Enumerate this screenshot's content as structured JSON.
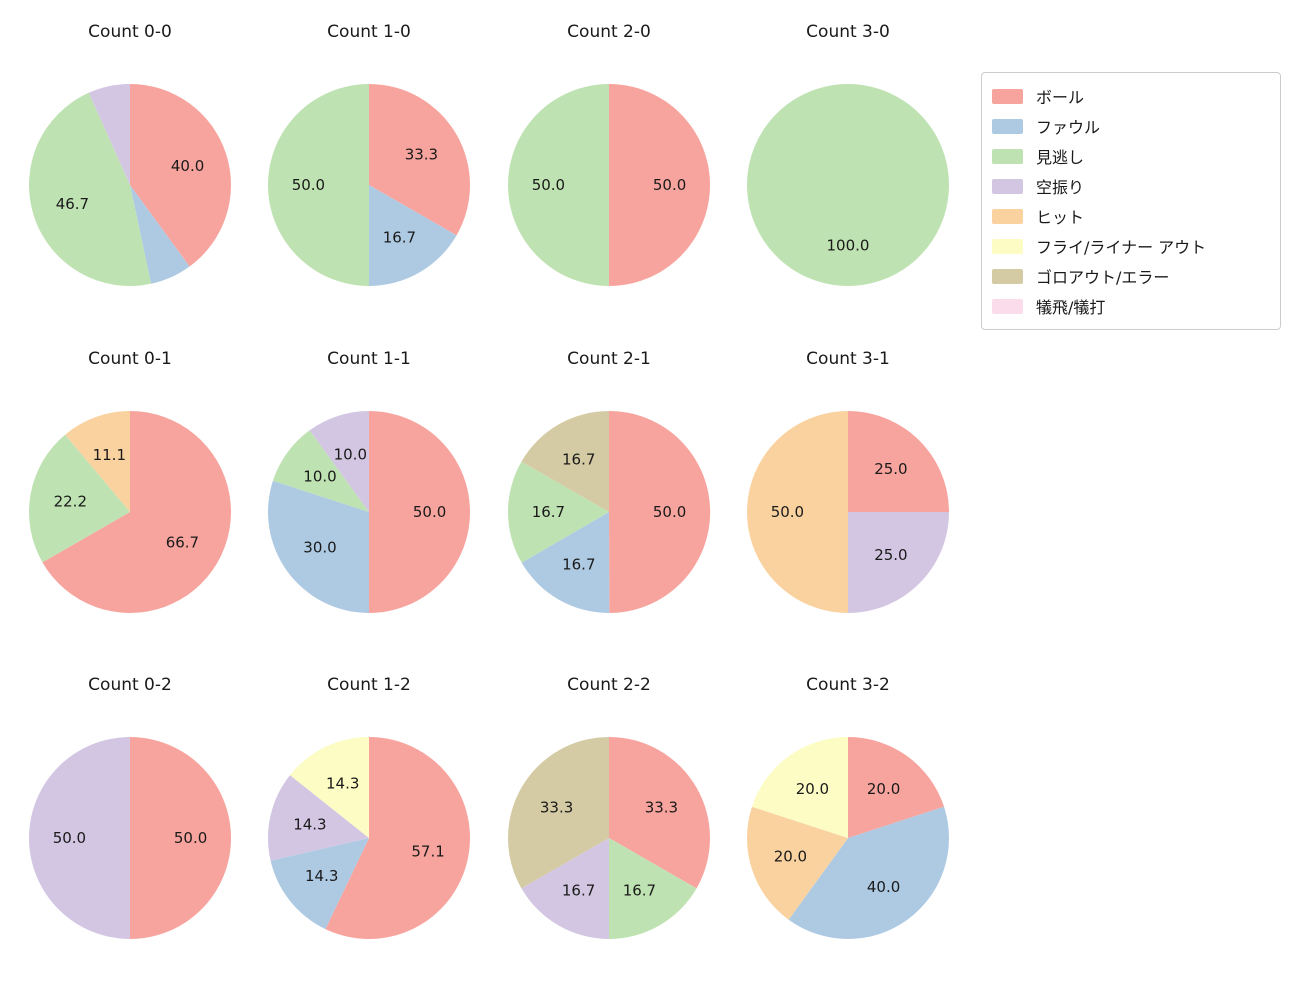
{
  "figure": {
    "background": "#ffffff",
    "text_color": "#1a1a1a"
  },
  "legend": {
    "position": "top-right",
    "items": [
      {
        "label": "ボール",
        "color": "#F8A49E"
      },
      {
        "label": "ファウル",
        "color": "#AECAE3"
      },
      {
        "label": "見逃し",
        "color": "#BFE2B2"
      },
      {
        "label": "空振り",
        "color": "#D3C6E3"
      },
      {
        "label": "ヒット",
        "color": "#FAD2A0"
      },
      {
        "label": "フライ/ライナー アウト",
        "color": "#FCFCC4"
      },
      {
        "label": "ゴロアウト/エラー",
        "color": "#D4CBA4"
      },
      {
        "label": "犠飛/犠打",
        "color": "#FBDCEB"
      }
    ]
  },
  "chart_data": [
    {
      "type": "pie",
      "title": "Count 0-0",
      "start_angle": 90,
      "direction": "clockwise",
      "value_unit": "percent",
      "slices": [
        {
          "category": "ボール",
          "value": 40.0,
          "label": "40.0"
        },
        {
          "category": "ファウル",
          "value": 6.7,
          "label": null
        },
        {
          "category": "見逃し",
          "value": 46.7,
          "label": "46.7"
        },
        {
          "category": "空振り",
          "value": 6.7,
          "label": null
        }
      ]
    },
    {
      "type": "pie",
      "title": "Count 1-0",
      "start_angle": 90,
      "direction": "clockwise",
      "value_unit": "percent",
      "slices": [
        {
          "category": "ボール",
          "value": 33.3,
          "label": "33.3"
        },
        {
          "category": "ファウル",
          "value": 16.7,
          "label": "16.7"
        },
        {
          "category": "見逃し",
          "value": 50.0,
          "label": "50.0"
        }
      ]
    },
    {
      "type": "pie",
      "title": "Count 2-0",
      "start_angle": 90,
      "direction": "clockwise",
      "value_unit": "percent",
      "slices": [
        {
          "category": "ボール",
          "value": 50.0,
          "label": "50.0"
        },
        {
          "category": "見逃し",
          "value": 50.0,
          "label": "50.0"
        }
      ]
    },
    {
      "type": "pie",
      "title": "Count 3-0",
      "start_angle": 90,
      "direction": "clockwise",
      "value_unit": "percent",
      "slices": [
        {
          "category": "見逃し",
          "value": 100.0,
          "label": "100.0"
        }
      ]
    },
    {
      "type": "pie",
      "title": "Count 0-1",
      "start_angle": 90,
      "direction": "clockwise",
      "value_unit": "percent",
      "slices": [
        {
          "category": "ボール",
          "value": 66.7,
          "label": "66.7"
        },
        {
          "category": "見逃し",
          "value": 22.2,
          "label": "22.2"
        },
        {
          "category": "ヒット",
          "value": 11.1,
          "label": "11.1"
        }
      ]
    },
    {
      "type": "pie",
      "title": "Count 1-1",
      "start_angle": 90,
      "direction": "clockwise",
      "value_unit": "percent",
      "slices": [
        {
          "category": "ボール",
          "value": 50.0,
          "label": "50.0"
        },
        {
          "category": "ファウル",
          "value": 30.0,
          "label": "30.0"
        },
        {
          "category": "見逃し",
          "value": 10.0,
          "label": "10.0"
        },
        {
          "category": "空振り",
          "value": 10.0,
          "label": "10.0"
        }
      ]
    },
    {
      "type": "pie",
      "title": "Count 2-1",
      "start_angle": 90,
      "direction": "clockwise",
      "value_unit": "percent",
      "slices": [
        {
          "category": "ボール",
          "value": 50.0,
          "label": "50.0"
        },
        {
          "category": "ファウル",
          "value": 16.7,
          "label": "16.7"
        },
        {
          "category": "見逃し",
          "value": 16.7,
          "label": "16.7"
        },
        {
          "category": "ゴロアウト/エラー",
          "value": 16.7,
          "label": "16.7"
        }
      ]
    },
    {
      "type": "pie",
      "title": "Count 3-1",
      "start_angle": 90,
      "direction": "clockwise",
      "value_unit": "percent",
      "slices": [
        {
          "category": "ボール",
          "value": 25.0,
          "label": "25.0"
        },
        {
          "category": "空振り",
          "value": 25.0,
          "label": "25.0"
        },
        {
          "category": "ヒット",
          "value": 50.0,
          "label": "50.0"
        }
      ]
    },
    {
      "type": "pie",
      "title": "Count 0-2",
      "start_angle": 90,
      "direction": "clockwise",
      "value_unit": "percent",
      "slices": [
        {
          "category": "ボール",
          "value": 50.0,
          "label": "50.0"
        },
        {
          "category": "空振り",
          "value": 50.0,
          "label": "50.0"
        }
      ]
    },
    {
      "type": "pie",
      "title": "Count 1-2",
      "start_angle": 90,
      "direction": "clockwise",
      "value_unit": "percent",
      "slices": [
        {
          "category": "ボール",
          "value": 57.1,
          "label": "57.1"
        },
        {
          "category": "ファウル",
          "value": 14.3,
          "label": "14.3"
        },
        {
          "category": "空振り",
          "value": 14.3,
          "label": "14.3"
        },
        {
          "category": "フライ/ライナー アウト",
          "value": 14.3,
          "label": "14.3"
        }
      ]
    },
    {
      "type": "pie",
      "title": "Count 2-2",
      "start_angle": 90,
      "direction": "clockwise",
      "value_unit": "percent",
      "slices": [
        {
          "category": "ボール",
          "value": 33.3,
          "label": "33.3"
        },
        {
          "category": "見逃し",
          "value": 16.7,
          "label": "16.7"
        },
        {
          "category": "空振り",
          "value": 16.7,
          "label": "16.7"
        },
        {
          "category": "ゴロアウト/エラー",
          "value": 33.3,
          "label": "33.3"
        }
      ]
    },
    {
      "type": "pie",
      "title": "Count 3-2",
      "start_angle": 90,
      "direction": "clockwise",
      "value_unit": "percent",
      "slices": [
        {
          "category": "ボール",
          "value": 20.0,
          "label": "20.0"
        },
        {
          "category": "ファウル",
          "value": 40.0,
          "label": "40.0"
        },
        {
          "category": "ヒット",
          "value": 20.0,
          "label": "20.0"
        },
        {
          "category": "フライ/ライナー アウト",
          "value": 20.0,
          "label": "20.0"
        }
      ]
    }
  ]
}
